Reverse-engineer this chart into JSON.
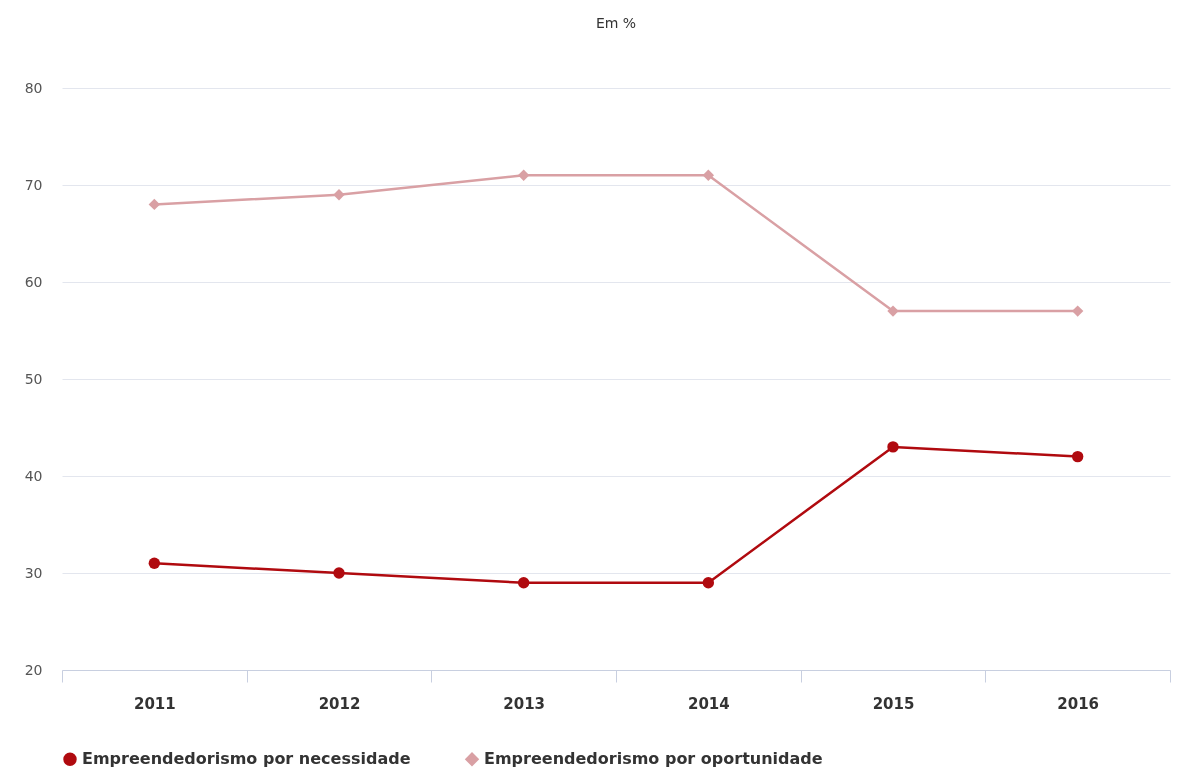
{
  "chart_data": {
    "type": "line",
    "title": "Em %",
    "categories": [
      "2011",
      "2012",
      "2013",
      "2014",
      "2015",
      "2016"
    ],
    "series": [
      {
        "name": "Empreendedorismo por necessidade",
        "color": "#b00a0f",
        "marker": "circle",
        "values": [
          31,
          30,
          29,
          29,
          43,
          42
        ]
      },
      {
        "name": "Empreendedorismo por oportunidade",
        "color": "#d9a0a4",
        "marker": "diamond",
        "values": [
          68,
          69,
          71,
          71,
          57,
          57
        ]
      }
    ],
    "ylim": [
      20,
      80
    ],
    "yticks": [
      20,
      30,
      40,
      50,
      60,
      70,
      80
    ],
    "grid": "y",
    "legend": "bottom",
    "line_style": "solid"
  }
}
